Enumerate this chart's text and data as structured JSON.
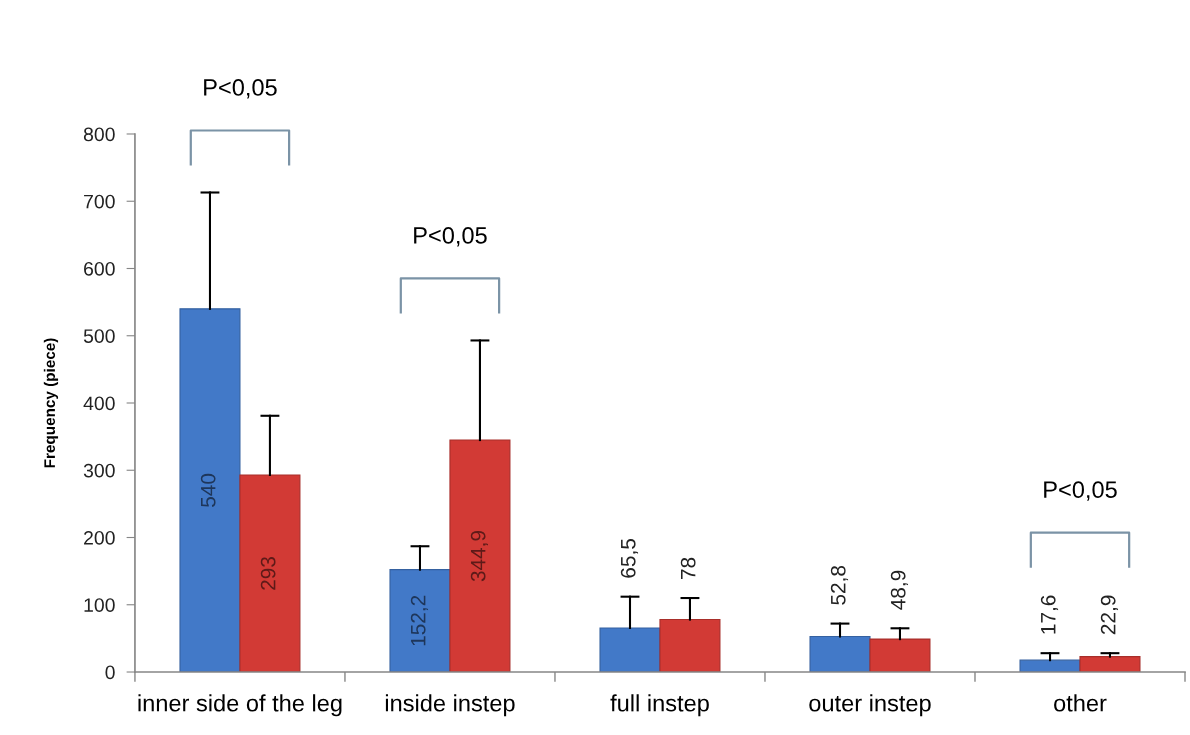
{
  "chart_data": {
    "type": "bar",
    "ylabel": "Frequency (piece)",
    "categories": [
      "inner side of the leg",
      "inside instep",
      "full instep",
      "outer instep",
      "other"
    ],
    "series": [
      {
        "color": "#4279c8",
        "values": [
          540,
          152.2,
          65.5,
          52.8,
          17.6
        ],
        "value_labels": [
          "540",
          "152,2",
          "65,5",
          "52,8",
          "17,6"
        ],
        "errors": [
          [
            540,
            713
          ],
          [
            152.2,
            187
          ],
          [
            65.5,
            112
          ],
          [
            52.8,
            72
          ],
          [
            17.6,
            28
          ]
        ]
      },
      {
        "color": "#d23a35",
        "values": [
          293,
          344.9,
          78,
          48.9,
          22.9
        ],
        "value_labels": [
          "293",
          "344,9",
          "78",
          "48,9",
          "22,9"
        ],
        "errors": [
          [
            293,
            381
          ],
          [
            344.9,
            493
          ],
          [
            78,
            110
          ],
          [
            48.9,
            65
          ],
          [
            22.9,
            28
          ]
        ]
      }
    ],
    "ylim": [
      0,
      800
    ],
    "yticks": [
      0,
      100,
      200,
      300,
      400,
      500,
      600,
      700,
      800
    ],
    "annotations": [
      "P<0,05",
      "P<0,05",
      "P<0,05"
    ]
  }
}
